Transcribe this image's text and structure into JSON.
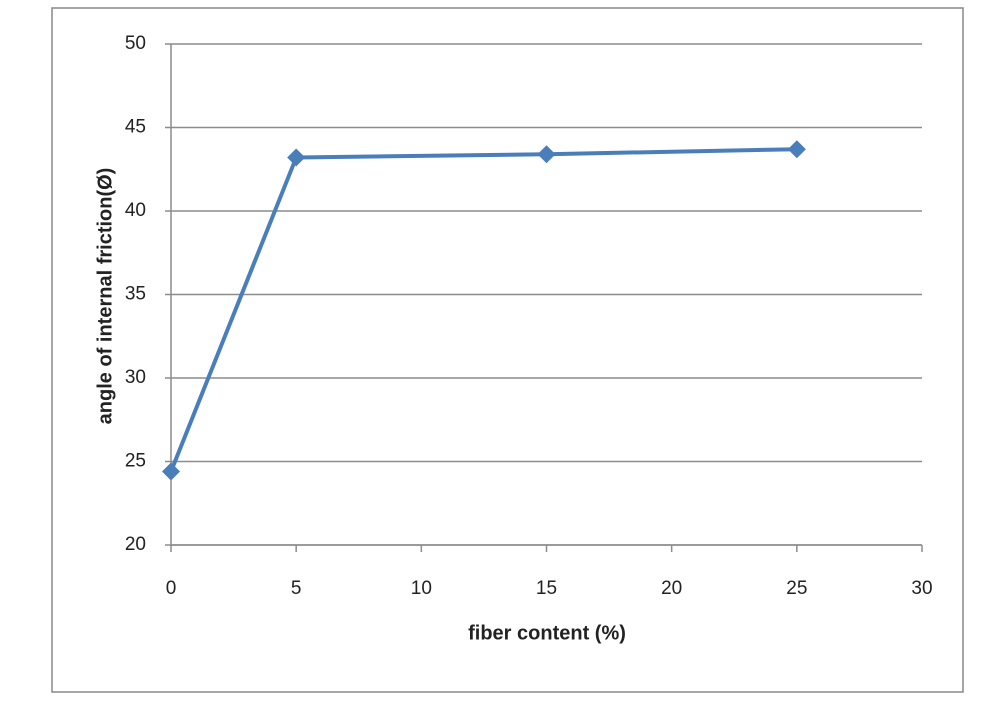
{
  "chart_data": {
    "type": "line",
    "x_label": "fiber content (%)",
    "y_label": "angle of internal friction(Ø)",
    "x": [
      0,
      5,
      15,
      25
    ],
    "values": [
      24.4,
      43.2,
      43.4,
      43.7
    ],
    "color": "#4a7ebb",
    "xlim": [
      0,
      30
    ],
    "xticks": [
      0,
      5,
      10,
      15,
      20,
      25,
      30
    ],
    "ylim": [
      20,
      50
    ],
    "yticks": [
      20,
      25,
      30,
      35,
      40,
      45,
      50
    ],
    "grid": true
  }
}
